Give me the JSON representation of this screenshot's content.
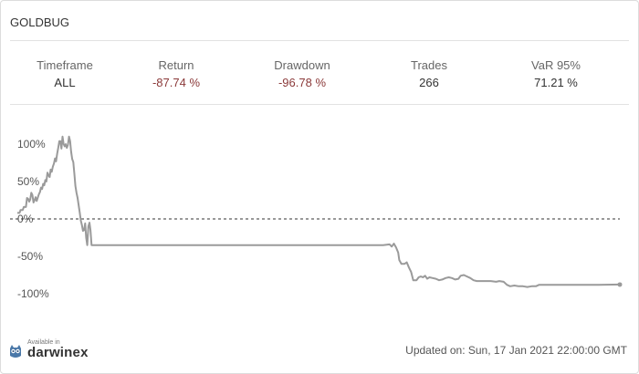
{
  "title": "GOLDBUG",
  "stats": [
    {
      "label": "Timeframe",
      "value": "ALL",
      "negative": false
    },
    {
      "label": "Return",
      "value": "-87.74 %",
      "negative": true
    },
    {
      "label": "Drawdown",
      "value": "-96.78 %",
      "negative": true
    },
    {
      "label": "Trades",
      "value": "266",
      "negative": false
    },
    {
      "label": "VaR 95%",
      "value": "71.21 %",
      "negative": false
    }
  ],
  "footer": {
    "logo_small": "Available in",
    "logo_name": "darwinex",
    "updated": "Updated on: Sun, 17 Jan 2021 22:00:00 GMT"
  },
  "chart_data": {
    "type": "line",
    "title": "",
    "xlabel": "",
    "ylabel": "",
    "ylim": [
      -115,
      125
    ],
    "y_ticks": [
      {
        "value": 100,
        "label": "100%"
      },
      {
        "value": 50,
        "label": "50%"
      },
      {
        "value": 0,
        "label": "0%"
      },
      {
        "value": -50,
        "label": "-50%"
      },
      {
        "value": -100,
        "label": "-100%"
      }
    ],
    "zero_line": "dashed",
    "grid": false,
    "line_color": "#9a9a9a",
    "series": [
      {
        "values": [
          [
            0,
            8
          ],
          [
            2,
            8
          ],
          [
            3,
            12
          ],
          [
            5,
            12
          ],
          [
            6,
            16
          ],
          [
            8,
            16
          ],
          [
            9,
            28
          ],
          [
            10,
            27
          ],
          [
            11,
            23
          ],
          [
            12,
            26
          ],
          [
            13,
            35
          ],
          [
            14,
            32
          ],
          [
            15,
            22
          ],
          [
            16,
            25
          ],
          [
            17,
            29
          ],
          [
            18,
            24
          ],
          [
            20,
            33
          ],
          [
            21,
            36
          ],
          [
            22,
            42
          ],
          [
            23,
            40
          ],
          [
            24,
            47
          ],
          [
            25,
            45
          ],
          [
            26,
            52
          ],
          [
            27,
            50
          ],
          [
            28,
            62
          ],
          [
            29,
            58
          ],
          [
            30,
            56
          ],
          [
            31,
            66
          ],
          [
            32,
            63
          ],
          [
            33,
            70
          ],
          [
            34,
            74
          ],
          [
            35,
            81
          ],
          [
            36,
            77
          ],
          [
            37,
            87
          ],
          [
            38,
            95
          ],
          [
            39,
            104
          ],
          [
            40,
            104
          ],
          [
            41,
            94
          ],
          [
            42,
            110
          ],
          [
            43,
            100
          ],
          [
            44,
            97
          ],
          [
            45,
            100
          ],
          [
            46,
            95
          ],
          [
            47,
            99
          ],
          [
            48,
            110
          ],
          [
            49,
            104
          ],
          [
            50,
            90
          ],
          [
            51,
            80
          ],
          [
            52,
            76
          ],
          [
            53,
            60
          ],
          [
            54,
            44
          ],
          [
            55,
            35
          ],
          [
            56,
            28
          ],
          [
            57,
            18
          ],
          [
            58,
            8
          ],
          [
            59,
            -2
          ],
          [
            60,
            -8
          ],
          [
            61,
            -16
          ],
          [
            62,
            -15
          ],
          [
            63,
            -6
          ],
          [
            64,
            -25
          ],
          [
            65,
            -35
          ],
          [
            66,
            -10
          ],
          [
            67,
            -5
          ],
          [
            68,
            -15
          ],
          [
            69,
            -35
          ],
          [
            80,
            -35
          ],
          [
            200,
            -35
          ],
          [
            300,
            -35
          ],
          [
            340,
            -35
          ],
          [
            346,
            -34
          ],
          [
            348,
            -37
          ],
          [
            350,
            -33
          ],
          [
            352,
            -38
          ],
          [
            354,
            -45
          ],
          [
            355,
            -55
          ],
          [
            357,
            -60
          ],
          [
            360,
            -60
          ],
          [
            362,
            -58
          ],
          [
            364,
            -65
          ],
          [
            366,
            -71
          ],
          [
            368,
            -82
          ],
          [
            371,
            -82
          ],
          [
            373,
            -78
          ],
          [
            375,
            -77
          ],
          [
            377,
            -78
          ],
          [
            379,
            -76
          ],
          [
            381,
            -80
          ],
          [
            383,
            -78
          ],
          [
            386,
            -79
          ],
          [
            389,
            -80
          ],
          [
            392,
            -82
          ],
          [
            395,
            -81
          ],
          [
            398,
            -79
          ],
          [
            401,
            -78
          ],
          [
            404,
            -79
          ],
          [
            407,
            -81
          ],
          [
            410,
            -80
          ],
          [
            412,
            -76
          ],
          [
            415,
            -75
          ],
          [
            418,
            -77
          ],
          [
            421,
            -79
          ],
          [
            424,
            -82
          ],
          [
            427,
            -83
          ],
          [
            435,
            -83
          ],
          [
            440,
            -83
          ],
          [
            445,
            -84
          ],
          [
            448,
            -83
          ],
          [
            452,
            -84
          ],
          [
            455,
            -88
          ],
          [
            458,
            -90
          ],
          [
            462,
            -89
          ],
          [
            466,
            -90
          ],
          [
            470,
            -90
          ],
          [
            474,
            -91
          ],
          [
            478,
            -90
          ],
          [
            482,
            -90
          ],
          [
            485,
            -88
          ],
          [
            490,
            -88
          ],
          [
            510,
            -88
          ],
          [
            540,
            -88
          ],
          [
            560,
            -87.74
          ]
        ]
      }
    ]
  }
}
